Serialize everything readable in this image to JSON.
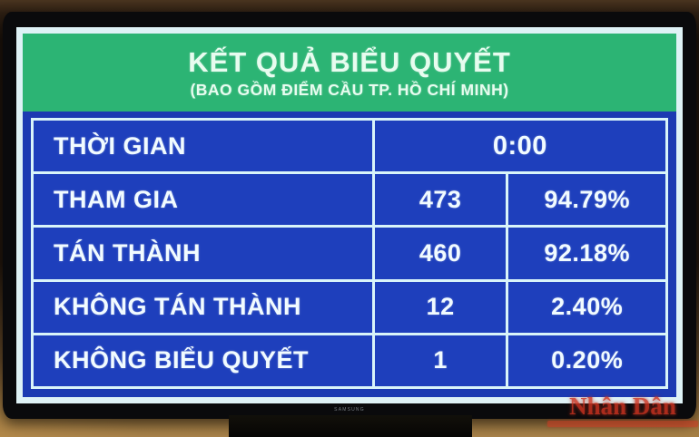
{
  "screen": {
    "title": "KẾT QUẢ BIỂU QUYẾT",
    "subtitle": "(BAO GỒM ĐIỂM CẦU TP. HỒ CHÍ MINH)"
  },
  "table": {
    "time_row": {
      "label": "THỜI GIAN",
      "value": "0:00"
    },
    "rows": [
      {
        "label": "THAM GIA",
        "count": "473",
        "percent": "94.79%"
      },
      {
        "label": "TÁN THÀNH",
        "count": "460",
        "percent": "92.18%"
      },
      {
        "label": "KHÔNG TÁN THÀNH",
        "count": "12",
        "percent": "2.40%"
      },
      {
        "label": "KHÔNG BIỂU QUYẾT",
        "count": "1",
        "percent": "0.20%"
      }
    ]
  },
  "chart_data": {
    "type": "table",
    "title": "KẾT QUẢ BIỂU QUYẾT (BAO GỒM ĐIỂM CẦU TP. HỒ CHÍ MINH)",
    "columns": [
      "category",
      "count",
      "percent"
    ],
    "rows": [
      [
        "THỜI GIAN",
        "0:00",
        ""
      ],
      [
        "THAM GIA",
        473,
        "94.79%"
      ],
      [
        "TÁN THÀNH",
        460,
        "92.18%"
      ],
      [
        "KHÔNG TÁN THÀNH",
        12,
        "2.40%"
      ],
      [
        "KHÔNG BIỂU QUYẾT",
        1,
        "0.20%"
      ]
    ]
  },
  "tv": {
    "brand": "SAMSUNG"
  },
  "watermark": {
    "text": "Nhân Dân"
  },
  "colors": {
    "header_green": "#2cb474",
    "body_blue": "#1c3ab2",
    "cell_blue": "#1e3fbc",
    "table_border": "#d9f4f9",
    "text_light": "#f1fbff",
    "watermark_red": "#cf3320",
    "wall_tan": "#99753f"
  }
}
